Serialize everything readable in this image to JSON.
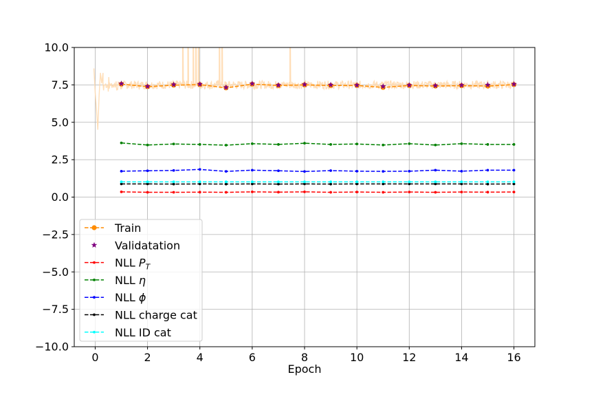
{
  "chart_data": {
    "type": "line",
    "title": "",
    "xlabel": "Epoch",
    "ylabel": "",
    "xlim": [
      -0.8,
      16.8
    ],
    "ylim": [
      -10.0,
      10.0
    ],
    "xticks": [
      0,
      2,
      4,
      6,
      8,
      10,
      12,
      14,
      16
    ],
    "xtick_labels": [
      "0",
      "2",
      "4",
      "6",
      "8",
      "10",
      "12",
      "14",
      "16"
    ],
    "yticks": [
      -10.0,
      -7.5,
      -5.0,
      -2.5,
      0.0,
      2.5,
      5.0,
      7.5,
      10.0
    ],
    "ytick_labels": [
      "−10.0",
      "−7.5",
      "−5.0",
      "−2.5",
      "0.0",
      "2.5",
      "5.0",
      "7.5",
      "10.0"
    ],
    "grid": true,
    "legend_placement": "lower-left",
    "x": [
      1,
      2,
      3,
      4,
      5,
      6,
      7,
      8,
      9,
      10,
      11,
      12,
      13,
      14,
      15,
      16
    ],
    "series": [
      {
        "name": "Train",
        "color": "#ff8c00",
        "style": "dashed",
        "marker": "circle",
        "values": [
          7.55,
          7.38,
          7.48,
          7.52,
          7.3,
          7.55,
          7.46,
          7.5,
          7.46,
          7.46,
          7.33,
          7.46,
          7.42,
          7.45,
          7.42,
          7.52
        ]
      },
      {
        "name": "Validatation",
        "color": "#800080",
        "style": "none",
        "marker": "star",
        "values": [
          7.58,
          7.4,
          7.52,
          7.55,
          7.33,
          7.58,
          7.48,
          7.53,
          7.5,
          7.48,
          7.4,
          7.48,
          7.45,
          7.48,
          7.5,
          7.55
        ]
      },
      {
        "name": "NLL P_T",
        "label_main": "NLL ",
        "label_math": "P",
        "label_sub": "T",
        "color": "#ff0000",
        "style": "dashed",
        "marker": "dot",
        "values": [
          0.35,
          0.32,
          0.32,
          0.33,
          0.32,
          0.35,
          0.33,
          0.35,
          0.32,
          0.34,
          0.32,
          0.34,
          0.32,
          0.34,
          0.33,
          0.34
        ]
      },
      {
        "name": "NLL η",
        "label_main": "NLL ",
        "label_math": "η",
        "color": "#008000",
        "style": "dashed",
        "marker": "dot",
        "values": [
          3.62,
          3.48,
          3.55,
          3.52,
          3.47,
          3.57,
          3.52,
          3.6,
          3.52,
          3.55,
          3.48,
          3.57,
          3.48,
          3.57,
          3.52,
          3.52
        ]
      },
      {
        "name": "NLL ϕ",
        "label_main": "NLL ",
        "label_math": "ϕ",
        "color": "#0000ff",
        "style": "dashed",
        "marker": "dot",
        "values": [
          1.73,
          1.76,
          1.78,
          1.85,
          1.72,
          1.8,
          1.76,
          1.71,
          1.77,
          1.73,
          1.72,
          1.73,
          1.8,
          1.73,
          1.8,
          1.8
        ]
      },
      {
        "name": "NLL charge cat",
        "color": "#000000",
        "style": "dashed",
        "marker": "dot",
        "values": [
          0.88,
          0.88,
          0.87,
          0.88,
          0.87,
          0.88,
          0.87,
          0.88,
          0.87,
          0.88,
          0.88,
          0.88,
          0.88,
          0.88,
          0.87,
          0.88
        ]
      },
      {
        "name": "NLL ID cat",
        "color": "#00ffff",
        "style": "dashed",
        "marker": "dot",
        "values": [
          1.02,
          1.02,
          1.02,
          1.02,
          1.02,
          1.02,
          1.02,
          1.02,
          1.02,
          1.02,
          1.02,
          1.02,
          1.02,
          1.02,
          1.02,
          1.02
        ]
      }
    ],
    "background_trace": {
      "name": "per-batch train loss",
      "color": "#ffdab0",
      "x": [
        -0.05,
        0.0,
        0.05,
        0.1,
        0.15,
        0.2,
        0.25,
        0.3,
        0.5,
        1.0,
        1.5,
        2.0,
        2.5,
        2.8,
        3.0,
        3.2,
        3.3,
        3.4,
        3.5,
        3.6,
        3.7,
        3.8,
        3.9,
        4.0,
        4.5,
        4.8,
        4.9,
        5.0,
        5.5,
        6.0,
        6.5,
        7.0,
        7.5,
        8.0,
        9.0,
        10.0,
        11.0,
        12.0,
        13.0,
        14.0,
        15.0,
        16.0
      ],
      "values": [
        8.6,
        7.0,
        5.8,
        4.5,
        6.8,
        8.3,
        7.6,
        8.3,
        7.7,
        7.6,
        7.4,
        7.6,
        7.5,
        8.2,
        7.5,
        10.0,
        7.4,
        10.0,
        7.6,
        10.0,
        7.5,
        10.0,
        7.4,
        10.0,
        7.5,
        10.0,
        7.4,
        7.5,
        7.6,
        7.5,
        7.6,
        7.4,
        7.6,
        7.5,
        7.6,
        7.4,
        7.6,
        7.5,
        7.6,
        7.5,
        7.6,
        7.5
      ],
      "spikes_to_top_at": [
        3.35,
        3.55,
        3.75,
        3.85,
        3.95,
        4.75,
        4.85,
        7.45
      ]
    }
  }
}
